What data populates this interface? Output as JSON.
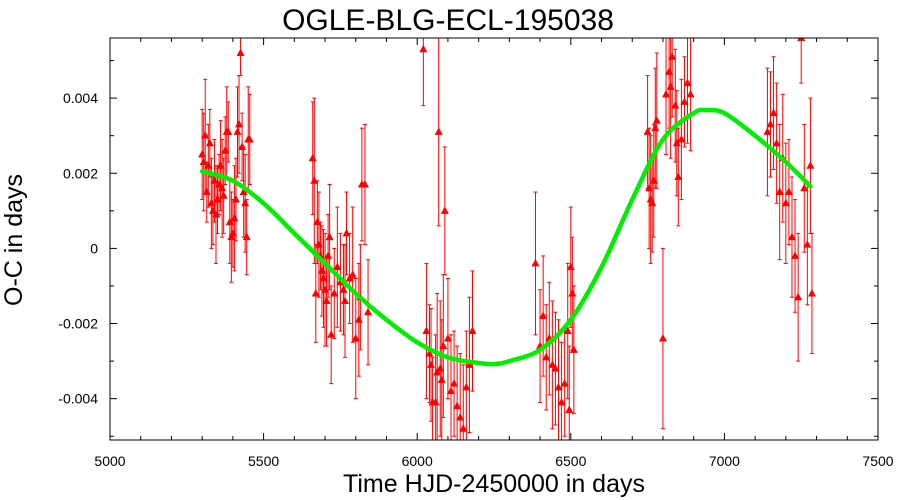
{
  "chart_data": {
    "type": "scatter",
    "title": "OGLE-BLG-ECL-195038",
    "xlabel": "Time HJD-2450000 in days",
    "ylabel": "O-C in days",
    "xlim": [
      5000,
      7500
    ],
    "ylim": [
      -0.0051,
      0.0056
    ],
    "xticks": [
      5000,
      5500,
      6000,
      6500,
      7000,
      7500
    ],
    "yticks": [
      -0.004,
      -0.002,
      0,
      0.002,
      0.004
    ],
    "ytick_labels": [
      "-0.004",
      "-0.002",
      "0",
      "0.002",
      "0.004"
    ],
    "grid": false,
    "colors": {
      "points": "#ff0000",
      "fit": "#00ee00",
      "axes": "#000000"
    },
    "fit_curve": {
      "x": [
        5300,
        5400,
        5500,
        5600,
        5700,
        5800,
        5900,
        6000,
        6100,
        6200,
        6250,
        6300,
        6400,
        6500,
        6600,
        6700,
        6800,
        6900,
        6940,
        7000,
        7100,
        7200,
        7280
      ],
      "y": [
        0.00205,
        0.0018,
        0.0012,
        0.0004,
        -0.0004,
        -0.0012,
        -0.0019,
        -0.0025,
        -0.0029,
        -0.00305,
        -0.00308,
        -0.003,
        -0.0027,
        -0.0019,
        -0.0005,
        0.0013,
        0.0029,
        0.0036,
        0.00368,
        0.0036,
        0.003,
        0.0023,
        0.00165
      ]
    },
    "series": [
      {
        "marker": "triangle",
        "x": [
          5300,
          5305,
          5310,
          5315,
          5320,
          5325,
          5330,
          5335,
          5340,
          5345,
          5350,
          5355,
          5360,
          5365,
          5370,
          5375,
          5380,
          5385,
          5390,
          5395,
          5400,
          5405,
          5410,
          5415,
          5420,
          5425,
          5430,
          5435,
          5440,
          5445,
          5450,
          5455,
          5660,
          5665,
          5670,
          5675,
          5680,
          5685,
          5690,
          5695,
          5700,
          5705,
          5710,
          5715,
          5720,
          5730,
          5740,
          5750,
          5760,
          5765,
          5770,
          5780,
          5790,
          5800,
          5810,
          5815,
          5820,
          5830,
          5840,
          6020,
          6030,
          6040,
          6045,
          6050,
          6060,
          6065,
          6070,
          6075,
          6080,
          6085,
          6090,
          6100,
          6110,
          6120,
          6130,
          6140,
          6150,
          6160,
          6170,
          6180,
          6385,
          6400,
          6410,
          6420,
          6430,
          6440,
          6450,
          6460,
          6470,
          6480,
          6490,
          6495,
          6500,
          6505,
          6510,
          6750,
          6755,
          6760,
          6765,
          6770,
          6775,
          6780,
          6800,
          6810,
          6820,
          6825,
          6830,
          6840,
          6845,
          6850,
          6860,
          6870,
          6880,
          6890,
          7140,
          7150,
          7160,
          7170,
          7180,
          7190,
          7200,
          7210,
          7220,
          7230,
          7240,
          7250,
          7260,
          7270,
          7280,
          7285
        ],
        "y": [
          0.0025,
          0.0023,
          0.003,
          0.0015,
          0.0022,
          0.0028,
          0.0012,
          0.001,
          0.0018,
          0.0009,
          0.0013,
          0.0017,
          0.0022,
          0.0016,
          0.0014,
          0.0026,
          0.0031,
          0.0031,
          0.0007,
          0.0003,
          0.0004,
          0.0008,
          0.0013,
          0.0031,
          0.0033,
          0.0052,
          0.0027,
          0.0015,
          0.0012,
          0.0003,
          0.0029,
          0.0029,
          0.0024,
          0.0018,
          -0.0012,
          0.0007,
          0.0001,
          -0.0002,
          -0.0006,
          -0.0008,
          -0.0011,
          -0.0014,
          -0.0002,
          0.0003,
          -0.0023,
          -0.0012,
          -0.0005,
          -0.0009,
          -0.0011,
          -0.0014,
          0.0004,
          -0.0008,
          -0.0007,
          -0.0024,
          -0.0019,
          -0.0013,
          0.0017,
          0.0017,
          -0.0017,
          0.0053,
          -0.0022,
          -0.0028,
          -0.0031,
          -0.0041,
          -0.0041,
          -0.0033,
          0.0031,
          -0.0032,
          -0.0035,
          -0.0026,
          0.001,
          -0.0024,
          -0.0038,
          -0.0036,
          -0.0042,
          -0.0045,
          -0.0048,
          -0.0037,
          -0.0031,
          -0.0022,
          -0.0004,
          -0.0026,
          -0.0018,
          -0.0029,
          -0.0024,
          -0.0031,
          -0.0032,
          -0.0037,
          -0.0041,
          -0.0036,
          -0.0022,
          -0.0043,
          -0.0005,
          -0.0012,
          -0.0027,
          0.0031,
          0.0016,
          0.0013,
          0.0012,
          0.0018,
          0.0032,
          0.0034,
          -0.0024,
          0.0041,
          0.0047,
          0.0043,
          0.0051,
          0.0038,
          0.0028,
          0.0019,
          0.0029,
          0.0039,
          0.0044,
          0.0041,
          0.0031,
          0.0033,
          0.0036,
          0.0028,
          0.0015,
          0.0024,
          0.0012,
          0.0015,
          0.0003,
          -0.0002,
          -0.0013,
          0.0056,
          0.0016,
          0.0001,
          0.0022,
          -0.0012
        ],
        "err": [
          0.0012,
          0.0013,
          0.0015,
          0.0008,
          0.0011,
          0.0009,
          0.0012,
          0.0009,
          0.0011,
          0.0013,
          0.0009,
          0.0008,
          0.0012,
          0.0013,
          0.001,
          0.0009,
          0.0012,
          0.0008,
          0.0011,
          0.0012,
          0.0009,
          0.0014,
          0.0011,
          0.0012,
          0.0013,
          0.0006,
          0.0009,
          0.0012,
          0.0013,
          0.001,
          0.0014,
          0.0012,
          0.0015,
          0.0022,
          0.0013,
          0.0011,
          0.0014,
          0.0009,
          0.0012,
          0.0013,
          0.0015,
          0.0012,
          0.0011,
          0.0014,
          0.0013,
          0.0012,
          0.0016,
          0.0013,
          0.0012,
          0.0015,
          0.0011,
          0.0012,
          0.0018,
          0.0016,
          0.0015,
          0.0014,
          0.0015,
          0.0016,
          0.0014,
          0.0015,
          0.0018,
          0.0013,
          0.0015,
          0.0012,
          0.0018,
          0.0021,
          0.0025,
          0.0018,
          0.0016,
          0.0019,
          0.0017,
          0.0016,
          0.0015,
          0.0014,
          0.0016,
          0.0017,
          0.0017,
          0.0015,
          0.0018,
          0.0016,
          0.0019,
          0.0015,
          0.0016,
          0.0014,
          0.0015,
          0.0017,
          0.0015,
          0.0018,
          0.0016,
          0.0014,
          0.0018,
          0.0017,
          0.0016,
          0.0015,
          0.0017,
          0.0015,
          0.0016,
          0.0017,
          0.0013,
          0.0015,
          0.0016,
          0.0018,
          0.0024,
          0.0016,
          0.0015,
          0.0019,
          0.0016,
          0.0015,
          0.0014,
          0.0013,
          0.0016,
          0.0012,
          0.0016,
          0.0015,
          0.0017,
          0.0014,
          0.0015,
          0.0016,
          0.0018,
          0.0017,
          0.0016,
          0.0014,
          0.0016,
          0.0015,
          0.0017,
          0.0012,
          0.0017,
          0.0016,
          0.0018,
          0.0016
        ]
      }
    ]
  }
}
